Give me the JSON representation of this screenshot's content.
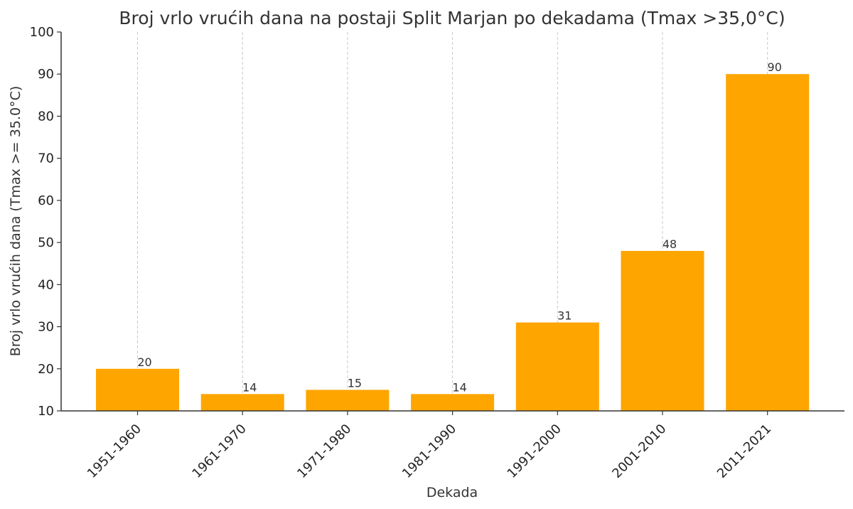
{
  "chart_data": {
    "type": "bar",
    "title": "Broj vrlo vrućih dana na postaji Split Marjan po dekadama (Tmax >35,0°C)",
    "xlabel": "Dekada",
    "ylabel": "Broj vrlo vrućih dana (Tmax >= 35.0°C)",
    "categories": [
      "1951-1960",
      "1961-1970",
      "1971-1980",
      "1981-1990",
      "1991-2000",
      "2001-2010",
      "2011-2021"
    ],
    "values": [
      20,
      14,
      15,
      14,
      31,
      48,
      90
    ],
    "ylim": [
      10,
      100
    ],
    "yticks": [
      10,
      20,
      30,
      40,
      50,
      60,
      70,
      80,
      90,
      100
    ],
    "bar_color": "#ffa500",
    "grid": "vertical dashed",
    "data_labels": true
  }
}
